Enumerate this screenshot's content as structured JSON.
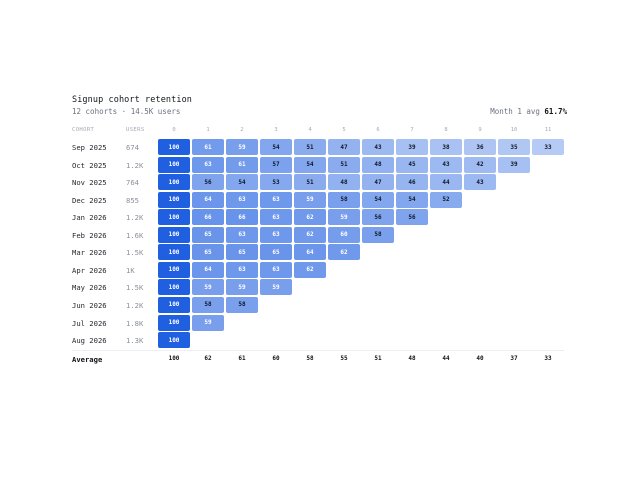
{
  "header": {
    "title": "Signup cohort retention",
    "subtitle": "12 cohorts · 14.5K users",
    "avg_prefix": "Month 1 avg",
    "avg_value": "61.7%"
  },
  "columns": {
    "cohort": "COHORT",
    "users": "USERS",
    "months": [
      "0",
      "1",
      "2",
      "3",
      "4",
      "5",
      "6",
      "7",
      "8",
      "9",
      "10",
      "11"
    ]
  },
  "chart_data": {
    "type": "heatmap",
    "title": "Signup cohort retention",
    "subtitle": "12 cohorts · 14.5K users",
    "xlabel": "",
    "ylabel": "",
    "x": [
      "0",
      "1",
      "2",
      "3",
      "4",
      "5",
      "6",
      "7",
      "8",
      "9",
      "10",
      "11"
    ],
    "rows": [
      {
        "cohort": "Sep 2025",
        "users": "674",
        "values": [
          100,
          61,
          59,
          54,
          51,
          47,
          43,
          39,
          38,
          36,
          35,
          33
        ]
      },
      {
        "cohort": "Oct 2025",
        "users": "1.2K",
        "values": [
          100,
          63,
          61,
          57,
          54,
          51,
          48,
          45,
          43,
          42,
          39
        ]
      },
      {
        "cohort": "Nov 2025",
        "users": "764",
        "values": [
          100,
          56,
          54,
          53,
          51,
          48,
          47,
          46,
          44,
          43
        ]
      },
      {
        "cohort": "Dec 2025",
        "users": "855",
        "values": [
          100,
          64,
          63,
          63,
          59,
          58,
          54,
          54,
          52
        ]
      },
      {
        "cohort": "Jan 2026",
        "users": "1.2K",
        "values": [
          100,
          66,
          66,
          63,
          62,
          59,
          56,
          56
        ]
      },
      {
        "cohort": "Feb 2026",
        "users": "1.6K",
        "values": [
          100,
          65,
          63,
          63,
          62,
          60,
          58
        ]
      },
      {
        "cohort": "Mar 2026",
        "users": "1.5K",
        "values": [
          100,
          65,
          65,
          65,
          64,
          62
        ]
      },
      {
        "cohort": "Apr 2026",
        "users": "1K",
        "values": [
          100,
          64,
          63,
          63,
          62
        ]
      },
      {
        "cohort": "May 2026",
        "users": "1.5K",
        "values": [
          100,
          59,
          59,
          59
        ]
      },
      {
        "cohort": "Jun 2026",
        "users": "1.2K",
        "values": [
          100,
          58,
          58
        ]
      },
      {
        "cohort": "Jul 2026",
        "users": "1.8K",
        "values": [
          100,
          59
        ]
      },
      {
        "cohort": "Aug 2026",
        "users": "1.3K",
        "values": [
          100
        ]
      }
    ],
    "average": {
      "label": "Average",
      "values": [
        100,
        62,
        61,
        60,
        58,
        55,
        51,
        48,
        44,
        40,
        37,
        33
      ]
    },
    "colors": {
      "base": "#1f5fe0",
      "strong_text": "#ffffff",
      "light_text": "#111827"
    }
  }
}
